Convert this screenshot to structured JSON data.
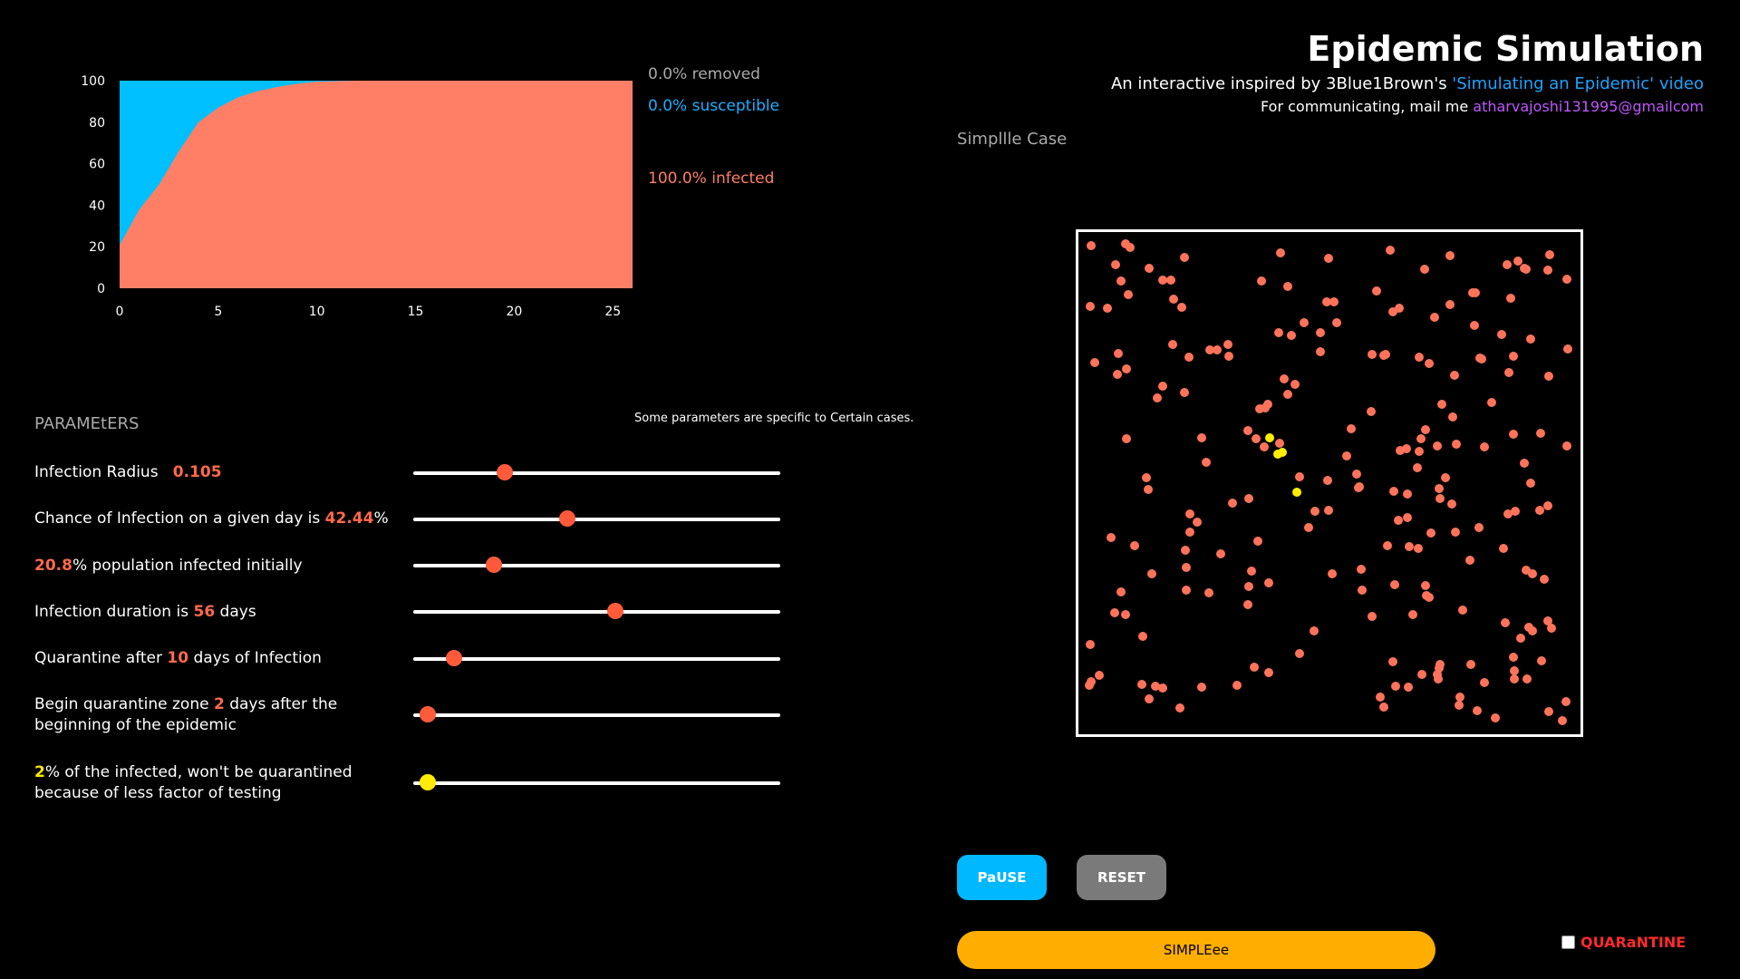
{
  "header": {
    "title": "Epidemic Simulation",
    "subtitle_prefix": "An interactive inspired by 3Blue1Brown's ",
    "subtitle_link": "'Simulating an Epidemic' video",
    "contact_prefix": "For communicating, mail me ",
    "contact_email": "atharvajoshi131995@gmailcom"
  },
  "case_label": "Simpllle Case",
  "chart_data": {
    "type": "area",
    "x": [
      0,
      1,
      2,
      3,
      4,
      5,
      6,
      7,
      8,
      9,
      10,
      12,
      15,
      20,
      26
    ],
    "series": [
      {
        "name": "infected",
        "values": [
          20.8,
          38,
          50,
          66,
          80,
          87,
          92,
          95,
          97,
          98.5,
          99.5,
          100,
          100,
          100,
          100
        ]
      },
      {
        "name": "susceptible",
        "values": [
          79.2,
          62,
          50,
          34,
          20,
          13,
          8,
          5,
          3,
          1.5,
          0.5,
          0,
          0,
          0,
          0
        ]
      },
      {
        "name": "removed",
        "values": [
          0,
          0,
          0,
          0,
          0,
          0,
          0,
          0,
          0,
          0,
          0,
          0,
          0,
          0,
          0
        ]
      }
    ],
    "xticks": [
      0,
      5,
      10,
      15,
      20,
      25
    ],
    "yticks": [
      0,
      20,
      40,
      60,
      80,
      100
    ],
    "xlim": [
      0,
      26
    ],
    "ylim": [
      0,
      100
    ],
    "colors": {
      "infected": "#ff7f66",
      "susceptible": "#00bfff",
      "removed": "#aaaaaa"
    }
  },
  "legend": {
    "removed": "0.0% removed",
    "susceptible": "0.0% susceptible",
    "infected": "100.0% infected"
  },
  "params": {
    "title": "PARAMEtERS",
    "note": "Some parameters are specific to Certain cases.",
    "infection_radius": {
      "label": "Infection Radius",
      "value": "0.105",
      "fraction": 0.25
    },
    "chance": {
      "prefix": "Chance of Infection on a given day is ",
      "value": "42.44",
      "suffix": "%",
      "fraction": 0.42
    },
    "initial": {
      "value": "20.8",
      "suffix": "% population infected initially",
      "fraction": 0.22
    },
    "duration": {
      "prefix": "Infection duration is ",
      "value": "56",
      "suffix": " days",
      "fraction": 0.55
    },
    "quarantine_after": {
      "prefix": "Quarantine after ",
      "value": "10",
      "suffix": " days of Infection",
      "fraction": 0.11
    },
    "zone": {
      "prefix": "Begin quarantine zone ",
      "value": "2",
      "suffix": " days after the beginning of the epidemic",
      "fraction": 0.04
    },
    "untested": {
      "value": "2",
      "suffix": "% of the infected, won't be quarantined because of less factor of testing",
      "fraction": 0.04
    }
  },
  "buttons": {
    "pause": "PaUSE",
    "reset": "RESET",
    "simple": "SIMPLEee"
  },
  "quarantine_toggle": {
    "label": "QUARaNTINE",
    "checked": false
  }
}
